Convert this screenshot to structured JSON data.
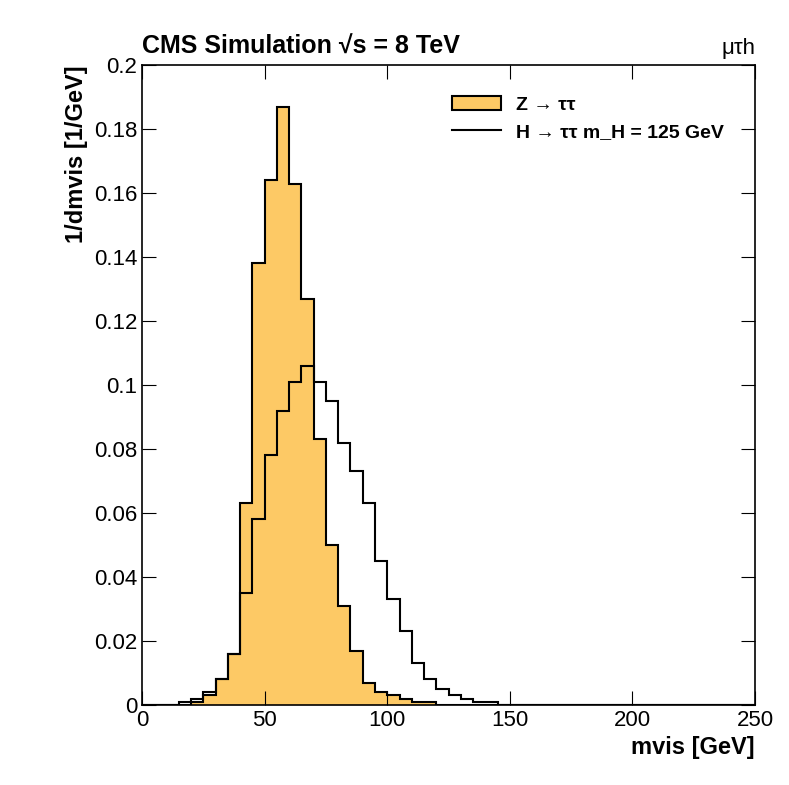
{
  "chart_data": {
    "type": "histogram",
    "title": "CMS Simulation √s = 8 TeV",
    "annotation": "μτh",
    "x_label": "mvis [GeV]",
    "y_label": "1/dmvis [1/GeV]",
    "bins": [
      0,
      5,
      10,
      15,
      20,
      25,
      30,
      35,
      40,
      45,
      50,
      55,
      60,
      65,
      70,
      75,
      80,
      85,
      90,
      95,
      100,
      105,
      110,
      115,
      120,
      125,
      130,
      135,
      140,
      145,
      150,
      155,
      160,
      165,
      170,
      175,
      180,
      185,
      190,
      195,
      200,
      205,
      210,
      215,
      220,
      225,
      230,
      235,
      240,
      245,
      250
    ],
    "series": [
      {
        "name": "Z → ττ",
        "type": "filled",
        "color": "#fdc965",
        "values": [
          0,
          0,
          0,
          0,
          0.001,
          0.003,
          0.008,
          0.016,
          0.063,
          0.138,
          0.164,
          0.187,
          0.163,
          0.127,
          0.083,
          0.05,
          0.031,
          0.017,
          0.007,
          0.004,
          0.003,
          0.002,
          0.001,
          0.001,
          0,
          0,
          0,
          0,
          0,
          0,
          0,
          0,
          0,
          0,
          0,
          0,
          0,
          0,
          0,
          0,
          0,
          0,
          0,
          0,
          0,
          0,
          0,
          0,
          0,
          0
        ]
      },
      {
        "name": "H → ττ m_H = 125 GeV",
        "type": "step",
        "color": "#000000",
        "values": [
          0,
          0,
          0,
          0.001,
          0.002,
          0.004,
          0.008,
          0.016,
          0.035,
          0.058,
          0.078,
          0.092,
          0.101,
          0.106,
          0.101,
          0.095,
          0.082,
          0.073,
          0.063,
          0.045,
          0.033,
          0.023,
          0.013,
          0.008,
          0.005,
          0.003,
          0.002,
          0.001,
          0.001,
          0,
          0,
          0,
          0,
          0,
          0,
          0,
          0,
          0,
          0,
          0,
          0,
          0,
          0,
          0,
          0,
          0,
          0,
          0,
          0,
          0
        ]
      }
    ],
    "xlim": [
      0,
      250
    ],
    "ylim": [
      0,
      0.2
    ],
    "xticks": [
      0,
      50,
      100,
      150,
      200,
      250
    ],
    "yticks": [
      0,
      0.02,
      0.04,
      0.06,
      0.08,
      0.1,
      0.12,
      0.14,
      0.16,
      0.18,
      0.2
    ],
    "legend": "upper right",
    "grid": false
  }
}
